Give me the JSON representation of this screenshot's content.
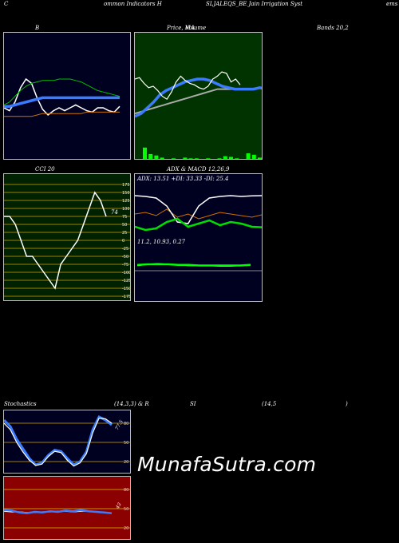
{
  "header": {
    "left": "C",
    "mid1": "ommon  Indicators  H",
    "mid2": "SLJALEQS_BE  Jain  Irrigation  Syst",
    "right": "ems l"
  },
  "labels": {
    "b": "B",
    "price": "Price,  MA",
    "volume": "Volume",
    "bands": "Bands 20,2",
    "cci": "CCI 20",
    "adx_macd": "ADX  & MACD 12,26,9",
    "adx_values": "ADX: 13.51  +DI: 33.33 -DI: 25.4",
    "macd_values": "11.2,  10.93,  0.27",
    "stoch_left": "Stochastics",
    "stoch_params": "(14,3,3) & R",
    "stoch_si": "SI",
    "rsi_params": "(14,5",
    "rsi_close": ")",
    "cci_current": "74",
    "stoch_current": "77.5",
    "rsi_current": "43"
  },
  "watermark": "MunafaSutra.com",
  "colors": {
    "bollinger_bg": "#000020",
    "price_bg": "#003300",
    "cci_bg": "#002200",
    "cci_grid": "#a08000",
    "adx_bg": "#000020",
    "stoch_bg": "#000020",
    "rsi_bg": "#8b0000",
    "blue": "#3b7bff",
    "green": "#00dd00",
    "orange": "#d07000"
  },
  "chart_data": [
    {
      "type": "line",
      "name": "bollinger",
      "series": [
        {
          "color": "#ffffff",
          "values": [
            80,
            82,
            76,
            66,
            60,
            63,
            73,
            81,
            85,
            82,
            80,
            82,
            80,
            78,
            80,
            82,
            83,
            80,
            80,
            82,
            83,
            79
          ]
        },
        {
          "color": "#00c000",
          "values": [
            78,
            76,
            72,
            68,
            65,
            63,
            62,
            61,
            61,
            61,
            60,
            60,
            60,
            61,
            62,
            64,
            66,
            68,
            69,
            70,
            71,
            72
          ]
        },
        {
          "color": "#3b7bff",
          "values": [
            79,
            79,
            78,
            77,
            76,
            75,
            74,
            73,
            73,
            73,
            73,
            73,
            73,
            73,
            73,
            73,
            73,
            73,
            73,
            73,
            73,
            73
          ]
        },
        {
          "color": "#d07000",
          "values": [
            86,
            86,
            86,
            86,
            86,
            86,
            85,
            84,
            84,
            84,
            84,
            84,
            84,
            84,
            84,
            83,
            83,
            83,
            83,
            83,
            83,
            83
          ]
        }
      ]
    },
    {
      "type": "line",
      "name": "price_ma",
      "series": [
        {
          "color": "#ffffff",
          "values": [
            60,
            59,
            63,
            66,
            65,
            68,
            72,
            74,
            69,
            62,
            58,
            61,
            63,
            64,
            66,
            67,
            65,
            60,
            58,
            55,
            56,
            62,
            60,
            64
          ]
        },
        {
          "color": "#3b7bff",
          "values": [
            86,
            84,
            80,
            76,
            71,
            68,
            66,
            64,
            62,
            61,
            60,
            60,
            61,
            63,
            65,
            66,
            67,
            67,
            67,
            67,
            66,
            67,
            68,
            68
          ]
        },
        {
          "color": "#aaaaaa",
          "values": [
            84,
            83,
            82,
            81,
            80,
            79,
            78,
            77,
            76,
            75,
            74,
            73,
            72,
            71,
            70,
            69,
            68,
            67,
            67,
            67,
            67,
            67,
            67,
            67
          ]
        }
      ],
      "volume": [
        18,
        9,
        7,
        4,
        2,
        3,
        2,
        4,
        3,
        3,
        2,
        3,
        2,
        3,
        6,
        5,
        3,
        2,
        10,
        8,
        4
      ]
    },
    {
      "type": "line",
      "name": "cci",
      "yticks": [
        175,
        150,
        125,
        100,
        75,
        50,
        25,
        0,
        -25,
        -50,
        -75,
        -100,
        -125,
        -150,
        -175
      ],
      "series": [
        {
          "color": "#ffffff",
          "values": [
            75,
            75,
            50,
            0,
            -50,
            -50,
            -75,
            -100,
            -125,
            -150,
            -75,
            -50,
            -25,
            0,
            50,
            100,
            150,
            125,
            75
          ]
        }
      ]
    },
    {
      "type": "line",
      "name": "adx",
      "series": [
        {
          "name": "ADX",
          "color": "#ffffff",
          "values": [
            13.5,
            14,
            15,
            20,
            30,
            31,
            20,
            15,
            14,
            13.5,
            14,
            13.6,
            13.5
          ]
        },
        {
          "name": "+DI",
          "color": "#00dd00",
          "values": [
            33,
            35,
            34,
            30,
            28,
            33,
            31,
            29,
            32,
            30,
            31,
            33,
            33.33
          ]
        },
        {
          "name": "-DI",
          "color": "#d07000",
          "values": [
            25,
            24,
            26,
            22,
            27,
            25,
            28,
            26,
            24,
            25,
            26,
            27,
            25.4
          ]
        }
      ]
    },
    {
      "type": "line",
      "name": "macd",
      "series": [
        {
          "color": "#ffffff",
          "values": [
            10,
            12,
            13,
            12,
            11,
            10,
            10,
            10,
            9,
            9,
            10,
            10.93
          ]
        },
        {
          "color": "#00ff00",
          "values": [
            11,
            12,
            12,
            12,
            11,
            11,
            10,
            10,
            10,
            10,
            10,
            11.2
          ]
        }
      ]
    },
    {
      "type": "line",
      "name": "stochastics",
      "yticks": [
        80,
        50,
        20
      ],
      "series": [
        {
          "name": "%K",
          "color": "#3b7bff",
          "values": [
            85,
            75,
            55,
            40,
            25,
            15,
            18,
            30,
            38,
            36,
            25,
            15,
            20,
            35,
            70,
            90,
            85,
            77.5
          ]
        },
        {
          "name": "%D",
          "color": "#ffffff",
          "values": [
            80,
            70,
            50,
            35,
            22,
            14,
            16,
            28,
            36,
            34,
            22,
            13,
            18,
            32,
            65,
            88,
            87,
            80
          ]
        }
      ]
    },
    {
      "type": "line",
      "name": "rsi",
      "yticks": [
        80,
        50,
        20
      ],
      "series": [
        {
          "color": "#3b7bff",
          "values": [
            48,
            47,
            44,
            43,
            45,
            44,
            46,
            45,
            47,
            46,
            48,
            46,
            45,
            44,
            43
          ]
        },
        {
          "color": "#ffffff",
          "values": [
            46,
            45,
            45,
            44,
            44,
            45,
            45,
            46,
            46,
            45,
            46,
            46,
            45,
            44,
            43
          ]
        }
      ]
    }
  ]
}
